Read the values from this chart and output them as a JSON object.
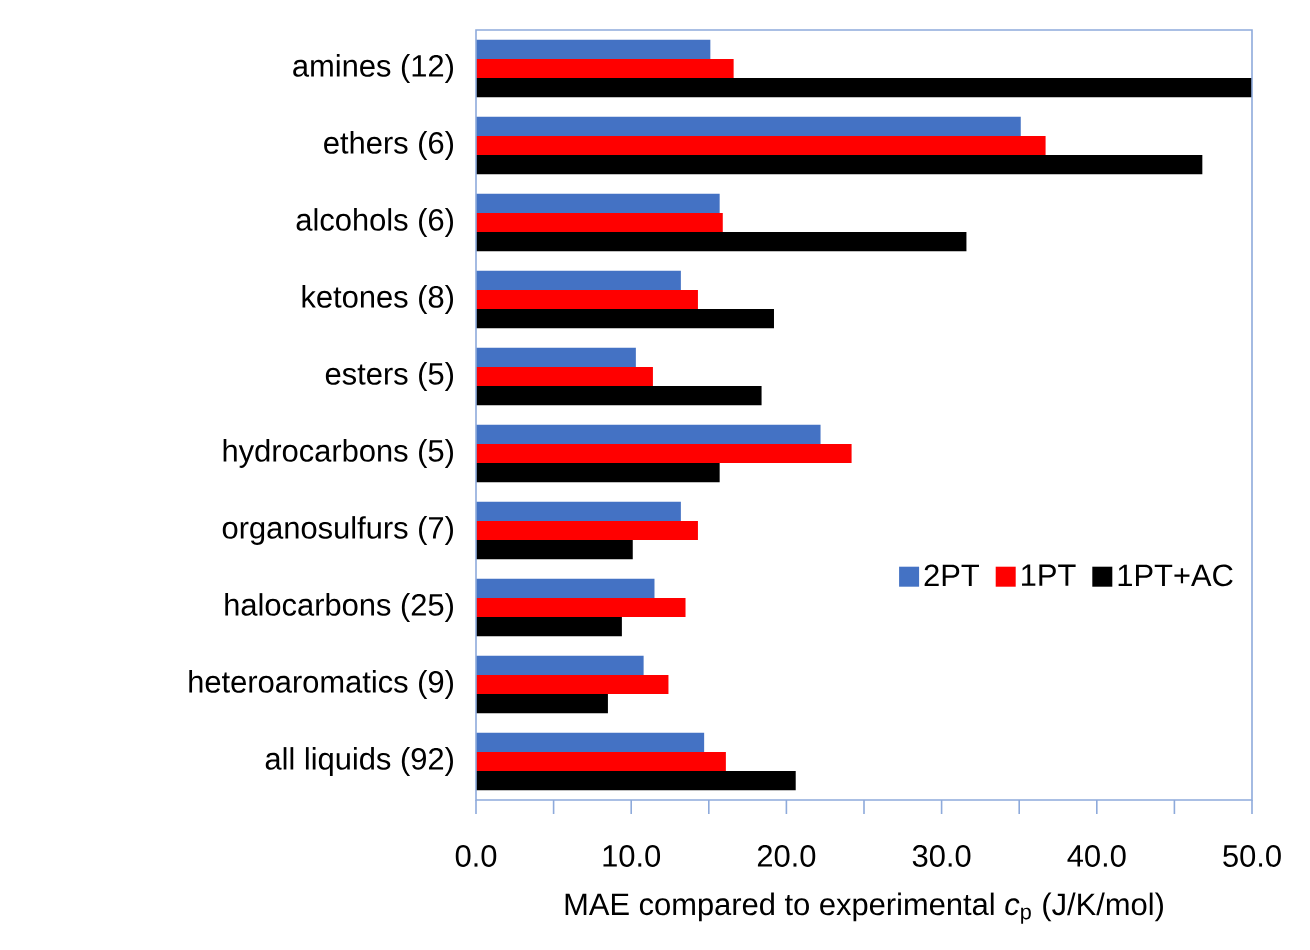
{
  "chart_data": {
    "type": "bar",
    "orientation": "horizontal",
    "categories": [
      "amines (12)",
      "ethers (6)",
      "alcohols (6)",
      "ketones (8)",
      "esters (5)",
      "hydrocarbons (5)",
      "organosulfurs  (7)",
      "halocarbons (25)",
      "heteroaromatics (9)",
      "all liquids (92)"
    ],
    "series": [
      {
        "name": "2PT",
        "color": "#4472c4",
        "values": [
          15.1,
          35.1,
          15.7,
          13.2,
          10.3,
          22.2,
          13.2,
          11.5,
          10.8,
          14.7
        ]
      },
      {
        "name": "1PT",
        "color": "#ff0000",
        "values": [
          16.6,
          36.7,
          15.9,
          14.3,
          11.4,
          24.2,
          14.3,
          13.5,
          12.4,
          16.1
        ]
      },
      {
        "name": "1PT+AC",
        "color": "#000000",
        "values": [
          50.0,
          46.8,
          31.6,
          19.2,
          18.4,
          15.7,
          10.1,
          9.4,
          8.5,
          20.6
        ]
      }
    ],
    "xlim": [
      0,
      50
    ],
    "xticks": [
      {
        "value": 0,
        "label": "0.0"
      },
      {
        "value": 5,
        "label": null
      },
      {
        "value": 10,
        "label": "10.0"
      },
      {
        "value": 15,
        "label": null
      },
      {
        "value": 20,
        "label": "20.0"
      },
      {
        "value": 25,
        "label": null
      },
      {
        "value": 30,
        "label": "30.0"
      },
      {
        "value": 35,
        "label": null
      },
      {
        "value": 40,
        "label": "40.0"
      },
      {
        "value": 45,
        "label": null
      },
      {
        "value": 50,
        "label": "50.0"
      }
    ],
    "xlabel": "MAE compared to experimental *c*$_{p}$ (J/K/mol)",
    "legend": "right"
  }
}
